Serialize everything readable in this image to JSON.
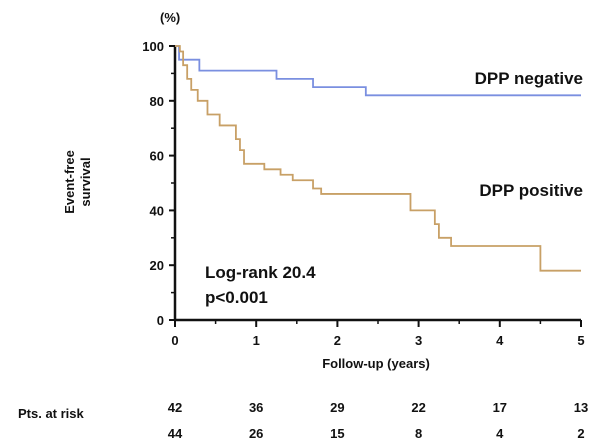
{
  "chart_data": {
    "type": "line",
    "title": "",
    "y_unit": "(%)",
    "ylabel_line1": "Event-free",
    "ylabel_line2": "survival",
    "xlabel": "Follow-up (years)",
    "xlim": [
      0,
      5
    ],
    "ylim": [
      0,
      100
    ],
    "x_ticks": [
      "0",
      "1",
      "2",
      "3",
      "4",
      "5"
    ],
    "y_ticks": [
      "0",
      "20",
      "40",
      "60",
      "80",
      "100"
    ],
    "grid": false,
    "series": [
      {
        "name": "DPP negative",
        "color": "#7a8fe0",
        "steps": [
          [
            0,
            100
          ],
          [
            0.05,
            95
          ],
          [
            0.3,
            91
          ],
          [
            1.25,
            88
          ],
          [
            1.7,
            85
          ],
          [
            2.35,
            82
          ],
          [
            5,
            82
          ]
        ]
      },
      {
        "name": "DPP positive",
        "color": "#c8a066",
        "steps": [
          [
            0,
            100
          ],
          [
            0.06,
            98
          ],
          [
            0.1,
            93
          ],
          [
            0.15,
            88
          ],
          [
            0.2,
            84
          ],
          [
            0.28,
            80
          ],
          [
            0.4,
            75
          ],
          [
            0.55,
            71
          ],
          [
            0.75,
            66
          ],
          [
            0.8,
            62
          ],
          [
            0.85,
            57
          ],
          [
            1.1,
            55
          ],
          [
            1.3,
            53
          ],
          [
            1.45,
            51
          ],
          [
            1.7,
            48
          ],
          [
            1.8,
            46
          ],
          [
            2.9,
            40
          ],
          [
            3.2,
            35
          ],
          [
            3.25,
            30
          ],
          [
            3.4,
            27
          ],
          [
            4.5,
            18
          ],
          [
            5,
            18
          ]
        ]
      }
    ],
    "annotations": [
      "Log-rank 20.4",
      "p<0.001"
    ],
    "risk_table": {
      "label": "Pts. at risk",
      "rows": [
        [
          "42",
          "36",
          "29",
          "22",
          "17",
          "13"
        ],
        [
          "44",
          "26",
          "15",
          "8",
          "4",
          "2"
        ]
      ]
    }
  }
}
